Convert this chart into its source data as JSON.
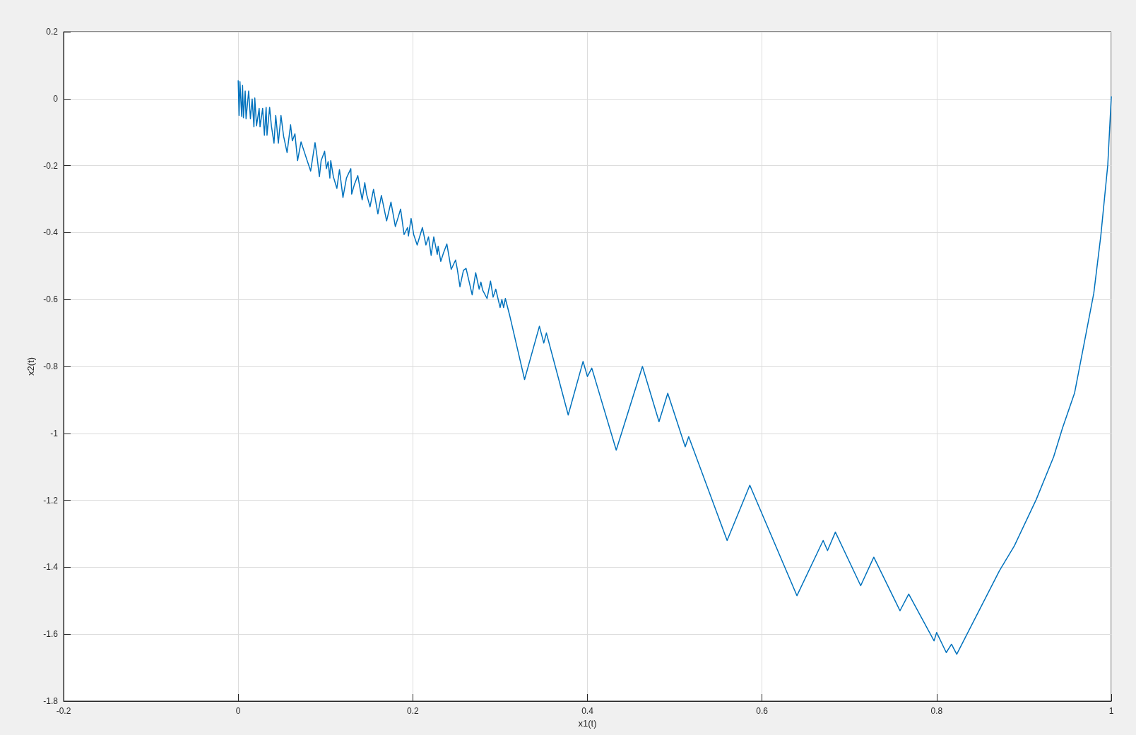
{
  "chart_data": {
    "type": "line",
    "xlabel": "x1(t)",
    "ylabel": "x2(t)",
    "grid": true,
    "marker": "none",
    "line_style": "solid",
    "xlim": [
      -0.2,
      1
    ],
    "xticks": [
      -0.2,
      0,
      0.2,
      0.4,
      0.6,
      0.8,
      1
    ],
    "ylim": [
      -1.8,
      0.2
    ],
    "yticks": [
      -1.8,
      -1.6,
      -1.4,
      -1.2,
      -1,
      -0.8,
      -0.6,
      -0.4,
      -0.2,
      0,
      0.2
    ],
    "series": [
      {
        "color": "#0072bd",
        "x": [
          0,
          0.001,
          0.002,
          0.004,
          0.005,
          0.006,
          0.008,
          0.009,
          0.012,
          0.014,
          0.016,
          0.018,
          0.019,
          0.021,
          0.024,
          0.025,
          0.028,
          0.03,
          0.032,
          0.033,
          0.036,
          0.038,
          0.041,
          0.043,
          0.046,
          0.049,
          0.052,
          0.056,
          0.06,
          0.062,
          0.065,
          0.068,
          0.072,
          0.076,
          0.079,
          0.083,
          0.088,
          0.09,
          0.093,
          0.095,
          0.099,
          0.101,
          0.103,
          0.105,
          0.106,
          0.109,
          0.113,
          0.116,
          0.12,
          0.124,
          0.129,
          0.13,
          0.133,
          0.137,
          0.14,
          0.142,
          0.145,
          0.147,
          0.151,
          0.155,
          0.16,
          0.164,
          0.17,
          0.175,
          0.18,
          0.186,
          0.19,
          0.194,
          0.195,
          0.198,
          0.201,
          0.205,
          0.211,
          0.215,
          0.218,
          0.221,
          0.224,
          0.228,
          0.229,
          0.232,
          0.235,
          0.239,
          0.244,
          0.249,
          0.251,
          0.254,
          0.258,
          0.261,
          0.268,
          0.272,
          0.276,
          0.278,
          0.28,
          0.285,
          0.289,
          0.292,
          0.295,
          0.3,
          0.302,
          0.304,
          0.306,
          0.311,
          0.328,
          0.345,
          0.35,
          0.353,
          0.378,
          0.395,
          0.4,
          0.405,
          0.433,
          0.463,
          0.482,
          0.492,
          0.512,
          0.516,
          0.56,
          0.586,
          0.64,
          0.67,
          0.675,
          0.684,
          0.713,
          0.728,
          0.758,
          0.768,
          0.797,
          0.8,
          0.811,
          0.817,
          0.823,
          0.872,
          0.889,
          0.914,
          0.934,
          0.944,
          0.958,
          0.969,
          0.98,
          0.988,
          0.996,
          1
        ],
        "values": [
          0.054,
          -0.05,
          0.051,
          -0.053,
          0.04,
          -0.057,
          0.023,
          -0.06,
          0.023,
          -0.06,
          -0.001,
          -0.084,
          0.002,
          -0.081,
          -0.029,
          -0.084,
          -0.029,
          -0.109,
          -0.026,
          -0.109,
          -0.026,
          -0.081,
          -0.133,
          -0.05,
          -0.133,
          -0.05,
          -0.112,
          -0.161,
          -0.078,
          -0.126,
          -0.105,
          -0.185,
          -0.129,
          -0.161,
          -0.185,
          -0.216,
          -0.131,
          -0.167,
          -0.233,
          -0.185,
          -0.157,
          -0.209,
          -0.188,
          -0.237,
          -0.185,
          -0.233,
          -0.268,
          -0.212,
          -0.295,
          -0.237,
          -0.209,
          -0.285,
          -0.257,
          -0.23,
          -0.275,
          -0.302,
          -0.251,
          -0.285,
          -0.323,
          -0.271,
          -0.344,
          -0.289,
          -0.365,
          -0.309,
          -0.382,
          -0.33,
          -0.406,
          -0.385,
          -0.41,
          -0.358,
          -0.406,
          -0.437,
          -0.385,
          -0.437,
          -0.413,
          -0.468,
          -0.413,
          -0.465,
          -0.441,
          -0.486,
          -0.462,
          -0.434,
          -0.51,
          -0.482,
          -0.51,
          -0.562,
          -0.513,
          -0.507,
          -0.586,
          -0.52,
          -0.569,
          -0.548,
          -0.572,
          -0.597,
          -0.545,
          -0.593,
          -0.569,
          -0.624,
          -0.6,
          -0.624,
          -0.597,
          -0.648,
          -0.839,
          -0.68,
          -0.73,
          -0.7,
          -0.945,
          -0.785,
          -0.83,
          -0.805,
          -1.05,
          -0.8,
          -0.965,
          -0.88,
          -1.04,
          -1.01,
          -1.32,
          -1.155,
          -1.485,
          -1.32,
          -1.35,
          -1.295,
          -1.455,
          -1.37,
          -1.53,
          -1.48,
          -1.62,
          -1.595,
          -1.655,
          -1.63,
          -1.66,
          -1.41,
          -1.336,
          -1.198,
          -1.07,
          -0.985,
          -0.879,
          -0.73,
          -0.581,
          -0.41,
          -0.198,
          0.006
        ]
      }
    ]
  }
}
